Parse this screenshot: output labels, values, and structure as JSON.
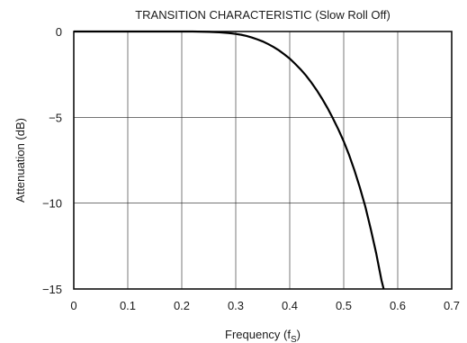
{
  "chart_data": {
    "type": "line",
    "title": "TRANSITION CHARACTERISTIC (Slow Roll Off)",
    "xlabel": "Frequency (f",
    "xlabel_sub": "S",
    "xlabel_end": ")",
    "ylabel": "Attenuation (dB)",
    "xlim": [
      0,
      0.7
    ],
    "ylim": [
      -15,
      0
    ],
    "x_ticks": [
      0,
      0.1,
      0.2,
      0.3,
      0.4,
      0.5,
      0.6,
      0.7
    ],
    "x_tick_labels": [
      "0",
      "0.1",
      "0.2",
      "0.3",
      "0.4",
      "0.5",
      "0.6",
      "0.7"
    ],
    "y_ticks": [
      0,
      -5,
      -10,
      -15
    ],
    "y_tick_labels": [
      "0",
      "−5",
      "−10",
      "−15"
    ],
    "grid": true,
    "series": [
      {
        "x": [
          0,
          0.05,
          0.1,
          0.15,
          0.2,
          0.22,
          0.25,
          0.27,
          0.29,
          0.3,
          0.31,
          0.32,
          0.33,
          0.34,
          0.35,
          0.36,
          0.37,
          0.38,
          0.39,
          0.4,
          0.41,
          0.42,
          0.43,
          0.44,
          0.45,
          0.46,
          0.47,
          0.48,
          0.49,
          0.5,
          0.51,
          0.52,
          0.53,
          0.54,
          0.55,
          0.56,
          0.57,
          0.574
        ],
        "y": [
          0,
          0,
          0,
          0,
          0,
          0,
          -0.02,
          -0.05,
          -0.1,
          -0.14,
          -0.19,
          -0.26,
          -0.35,
          -0.46,
          -0.58,
          -0.73,
          -0.9,
          -1.1,
          -1.33,
          -1.58,
          -1.88,
          -2.2,
          -2.56,
          -2.97,
          -3.42,
          -3.92,
          -4.46,
          -5.06,
          -5.7,
          -6.4,
          -7.2,
          -8.1,
          -9.1,
          -10.2,
          -11.5,
          -12.9,
          -14.5,
          -15
        ]
      }
    ]
  }
}
